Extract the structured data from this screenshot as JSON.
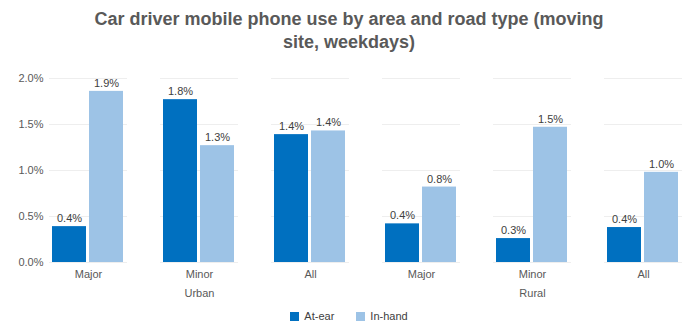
{
  "chart_data": {
    "type": "bar",
    "title": "Car driver mobile phone use by area and road type (moving site, weekdays)",
    "categories": [
      "Major",
      "Minor",
      "All",
      "Major",
      "Minor",
      "All"
    ],
    "category_groups": [
      "Urban",
      "Urban",
      "Urban",
      "Rural",
      "Rural",
      "Rural"
    ],
    "series": [
      {
        "name": "At-ear",
        "color": "#0070C0",
        "values": [
          0.39,
          1.77,
          1.39,
          0.42,
          0.26,
          0.38
        ],
        "value_labels": [
          "0.4%",
          "1.8%",
          "1.4%",
          "0.4%",
          "0.3%",
          "0.4%"
        ]
      },
      {
        "name": "In-hand",
        "color": "#9DC3E6",
        "values": [
          1.86,
          1.27,
          1.43,
          0.82,
          1.47,
          0.98
        ],
        "value_labels": [
          "1.9%",
          "1.3%",
          "1.4%",
          "0.8%",
          "1.5%",
          "1.0%"
        ]
      }
    ],
    "ylim": [
      0,
      2
    ],
    "yticks": [
      {
        "value": 0,
        "label": "0.0%"
      },
      {
        "value": 0.5,
        "label": "0.5%"
      },
      {
        "value": 1,
        "label": "1.0%"
      },
      {
        "value": 1.5,
        "label": "1.5%"
      },
      {
        "value": 2,
        "label": "2.0%"
      }
    ],
    "grid": true,
    "data_labels": true,
    "legend": "bottom"
  }
}
